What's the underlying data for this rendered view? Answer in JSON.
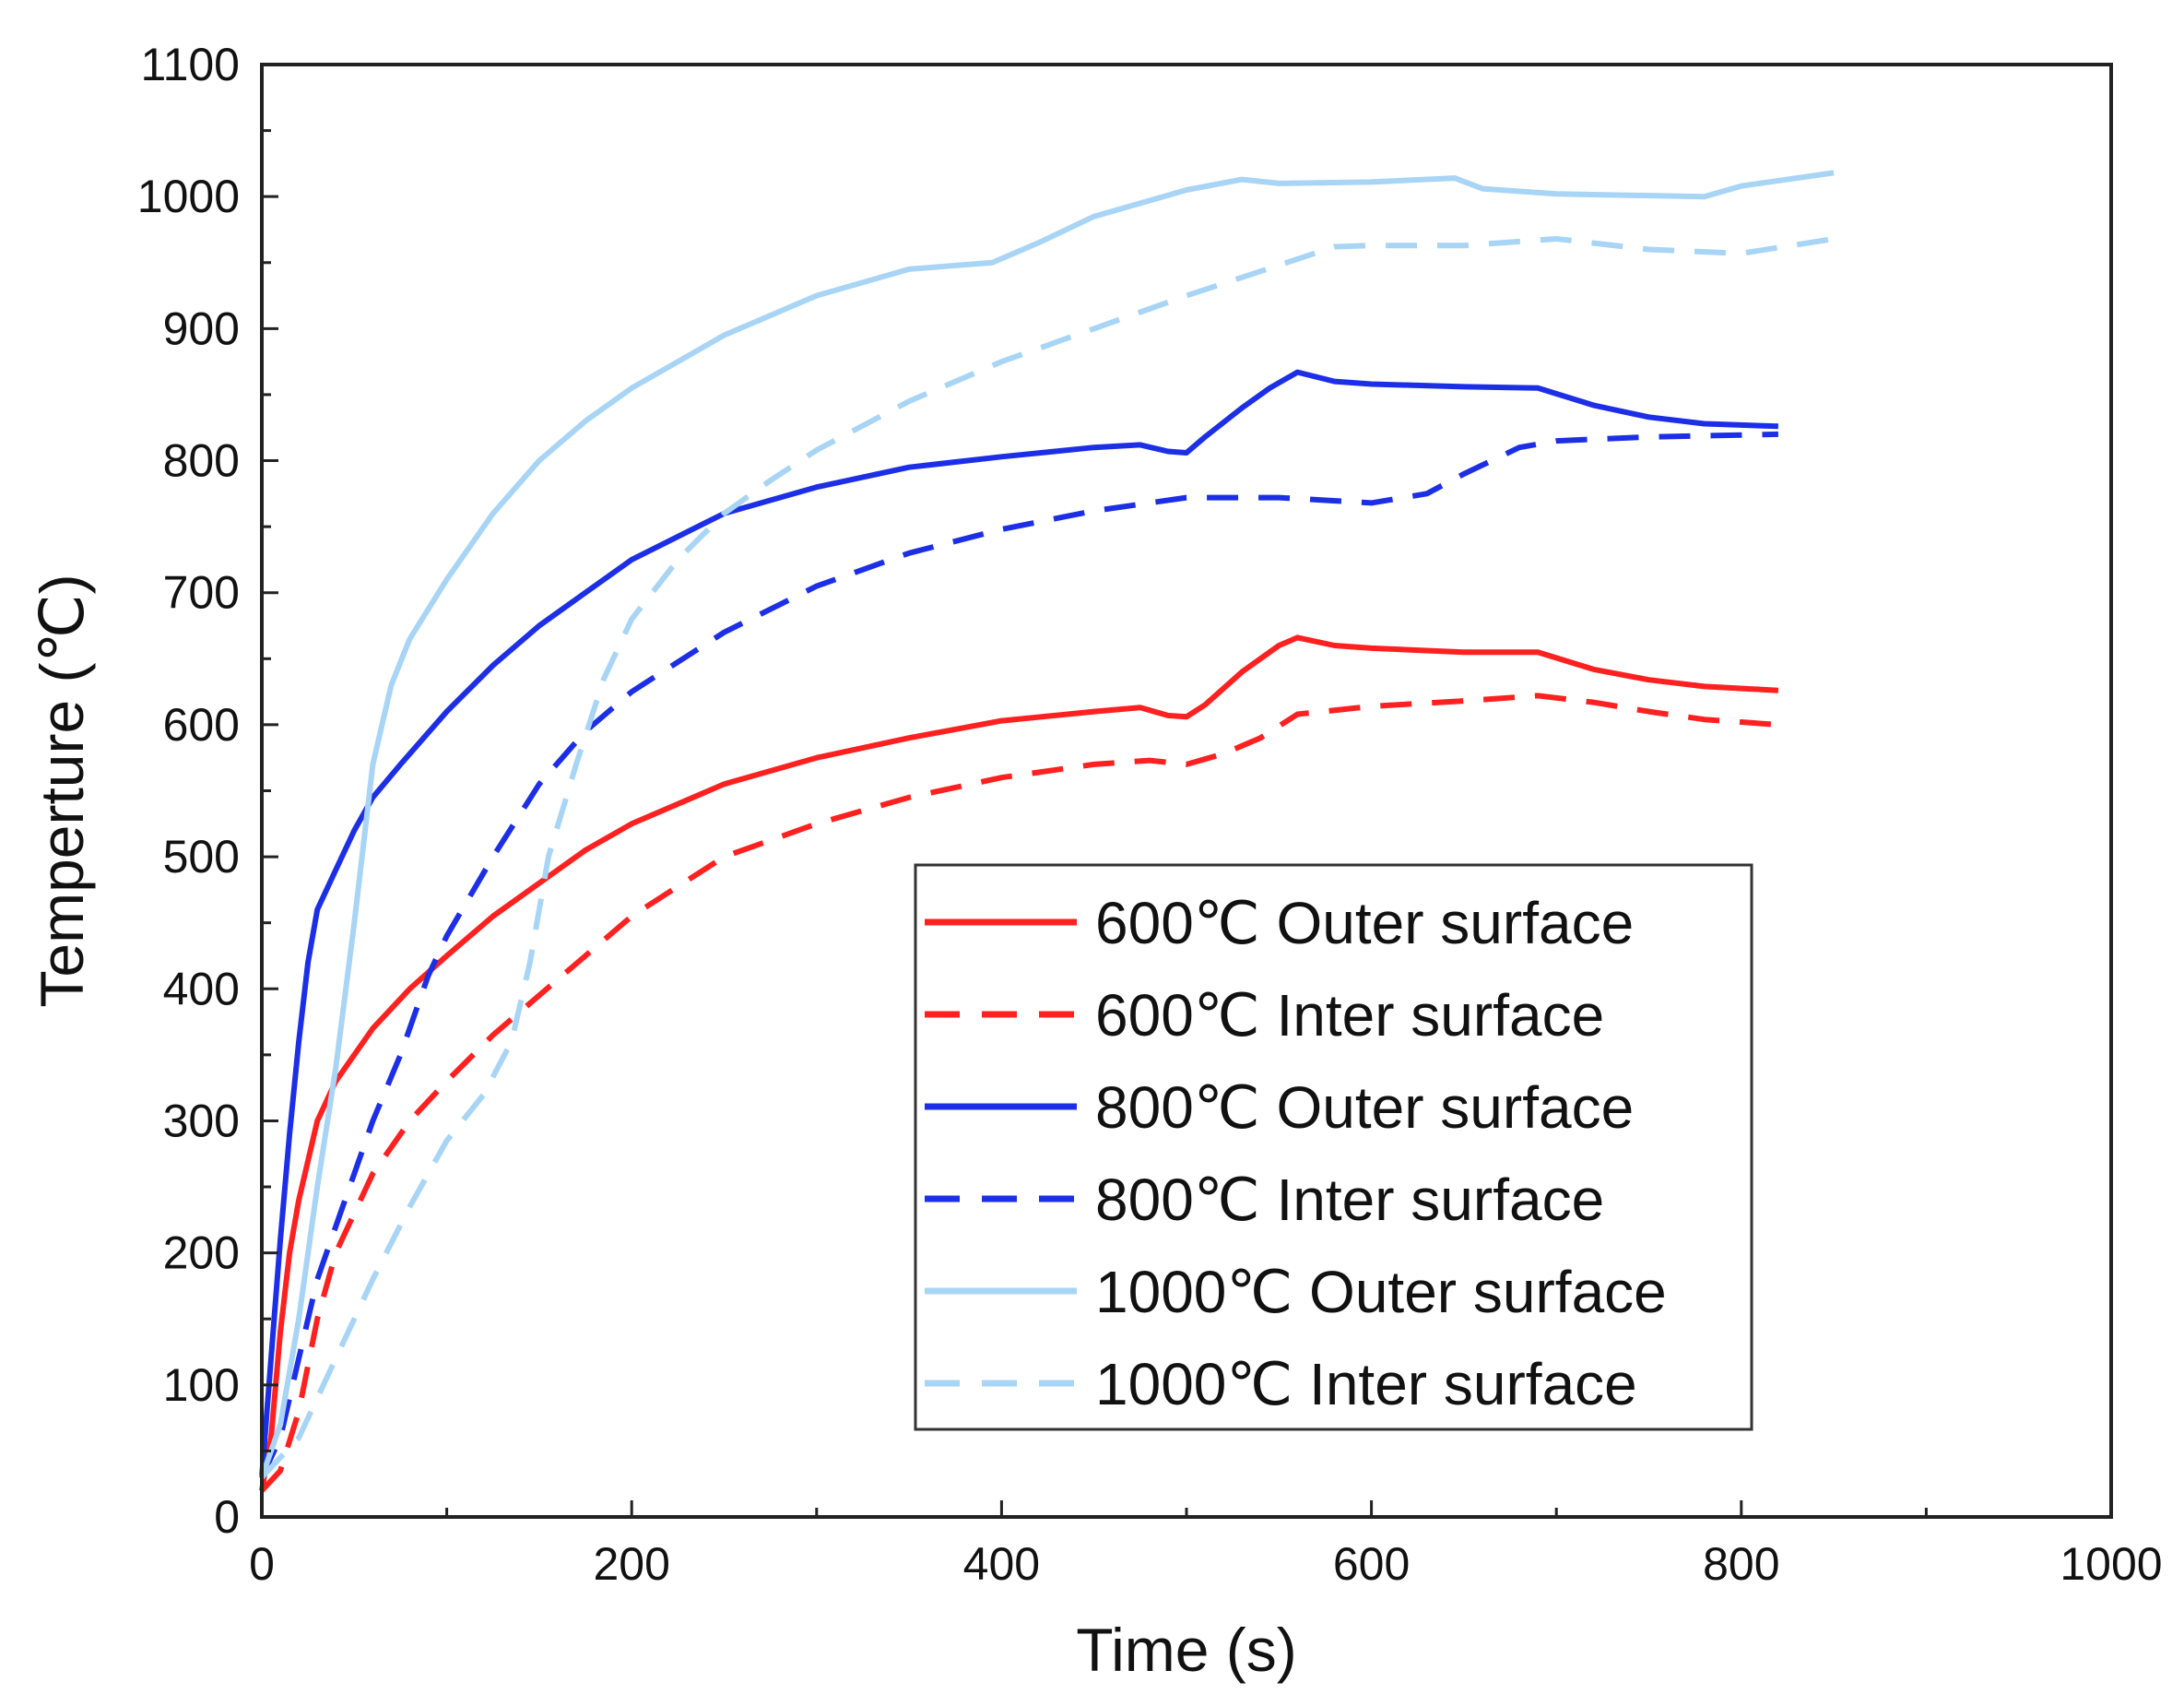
{
  "chart_data": {
    "type": "line",
    "title": "",
    "xlabel": "Time (s)",
    "ylabel": "Temperture (℃)",
    "xlim": [
      0,
      1000
    ],
    "ylim": [
      0,
      1100
    ],
    "xticks": [
      0,
      200,
      400,
      600,
      800,
      1000
    ],
    "yticks": [
      0,
      100,
      200,
      300,
      400,
      500,
      600,
      700,
      800,
      900,
      1000,
      1100
    ],
    "grid": false,
    "legend_position": "lower-right",
    "series": [
      {
        "name": "600℃ Outer surface",
        "color": "#ff2020",
        "style": "solid",
        "points": [
          [
            0,
            20
          ],
          [
            5,
            60
          ],
          [
            10,
            140
          ],
          [
            15,
            200
          ],
          [
            20,
            240
          ],
          [
            30,
            300
          ],
          [
            40,
            330
          ],
          [
            60,
            370
          ],
          [
            80,
            400
          ],
          [
            100,
            425
          ],
          [
            125,
            455
          ],
          [
            150,
            480
          ],
          [
            175,
            505
          ],
          [
            200,
            525
          ],
          [
            250,
            555
          ],
          [
            300,
            575
          ],
          [
            350,
            590
          ],
          [
            400,
            603
          ],
          [
            450,
            610
          ],
          [
            475,
            613
          ],
          [
            490,
            607
          ],
          [
            500,
            606
          ],
          [
            510,
            615
          ],
          [
            530,
            640
          ],
          [
            550,
            660
          ],
          [
            560,
            666
          ],
          [
            580,
            660
          ],
          [
            600,
            658
          ],
          [
            650,
            655
          ],
          [
            690,
            655
          ],
          [
            720,
            642
          ],
          [
            750,
            634
          ],
          [
            780,
            629
          ],
          [
            820,
            626
          ]
        ]
      },
      {
        "name": "600℃ Inter surface",
        "color": "#ff2020",
        "style": "dashed",
        "points": [
          [
            0,
            20
          ],
          [
            10,
            35
          ],
          [
            20,
            80
          ],
          [
            30,
            150
          ],
          [
            40,
            200
          ],
          [
            60,
            260
          ],
          [
            80,
            300
          ],
          [
            100,
            330
          ],
          [
            125,
            365
          ],
          [
            150,
            395
          ],
          [
            175,
            425
          ],
          [
            200,
            455
          ],
          [
            250,
            500
          ],
          [
            300,
            525
          ],
          [
            350,
            545
          ],
          [
            400,
            560
          ],
          [
            450,
            570
          ],
          [
            480,
            573
          ],
          [
            500,
            570
          ],
          [
            520,
            578
          ],
          [
            540,
            590
          ],
          [
            560,
            608
          ],
          [
            600,
            614
          ],
          [
            650,
            618
          ],
          [
            690,
            622
          ],
          [
            720,
            617
          ],
          [
            750,
            610
          ],
          [
            780,
            604
          ],
          [
            820,
            600
          ]
        ]
      },
      {
        "name": "800℃ Outer surface",
        "color": "#1c2fe6",
        "style": "solid",
        "points": [
          [
            0,
            30
          ],
          [
            5,
            120
          ],
          [
            10,
            210
          ],
          [
            15,
            290
          ],
          [
            20,
            360
          ],
          [
            25,
            420
          ],
          [
            30,
            460
          ],
          [
            40,
            490
          ],
          [
            50,
            520
          ],
          [
            60,
            545
          ],
          [
            75,
            570
          ],
          [
            100,
            610
          ],
          [
            125,
            645
          ],
          [
            150,
            675
          ],
          [
            175,
            700
          ],
          [
            200,
            725
          ],
          [
            250,
            760
          ],
          [
            300,
            780
          ],
          [
            350,
            795
          ],
          [
            400,
            803
          ],
          [
            450,
            810
          ],
          [
            475,
            812
          ],
          [
            490,
            807
          ],
          [
            500,
            806
          ],
          [
            510,
            818
          ],
          [
            530,
            840
          ],
          [
            545,
            855
          ],
          [
            560,
            867
          ],
          [
            580,
            860
          ],
          [
            600,
            858
          ],
          [
            650,
            856
          ],
          [
            690,
            855
          ],
          [
            720,
            842
          ],
          [
            750,
            833
          ],
          [
            780,
            828
          ],
          [
            820,
            826
          ]
        ]
      },
      {
        "name": "800℃ Inter surface",
        "color": "#1c2fe6",
        "style": "dashed",
        "points": [
          [
            0,
            30
          ],
          [
            10,
            60
          ],
          [
            20,
            120
          ],
          [
            30,
            180
          ],
          [
            40,
            220
          ],
          [
            50,
            260
          ],
          [
            60,
            300
          ],
          [
            75,
            350
          ],
          [
            90,
            410
          ],
          [
            100,
            440
          ],
          [
            125,
            500
          ],
          [
            150,
            555
          ],
          [
            175,
            595
          ],
          [
            200,
            625
          ],
          [
            250,
            670
          ],
          [
            300,
            705
          ],
          [
            350,
            730
          ],
          [
            400,
            748
          ],
          [
            450,
            762
          ],
          [
            500,
            772
          ],
          [
            550,
            772
          ],
          [
            600,
            768
          ],
          [
            630,
            775
          ],
          [
            650,
            790
          ],
          [
            680,
            810
          ],
          [
            700,
            815
          ],
          [
            750,
            818
          ],
          [
            820,
            820
          ]
        ]
      },
      {
        "name": "1000℃ Outer surface",
        "color": "#a8d4f5",
        "style": "solid",
        "points": [
          [
            0,
            30
          ],
          [
            10,
            70
          ],
          [
            20,
            150
          ],
          [
            30,
            250
          ],
          [
            40,
            340
          ],
          [
            50,
            450
          ],
          [
            60,
            570
          ],
          [
            70,
            630
          ],
          [
            80,
            665
          ],
          [
            100,
            710
          ],
          [
            125,
            760
          ],
          [
            150,
            800
          ],
          [
            175,
            830
          ],
          [
            200,
            855
          ],
          [
            250,
            895
          ],
          [
            300,
            925
          ],
          [
            350,
            945
          ],
          [
            395,
            950
          ],
          [
            420,
            965
          ],
          [
            450,
            985
          ],
          [
            500,
            1005
          ],
          [
            530,
            1013
          ],
          [
            550,
            1010
          ],
          [
            600,
            1011
          ],
          [
            645,
            1014
          ],
          [
            660,
            1006
          ],
          [
            700,
            1002
          ],
          [
            780,
            1000
          ],
          [
            800,
            1008
          ],
          [
            850,
            1018
          ]
        ]
      },
      {
        "name": "1000℃ Inter surface",
        "color": "#a8d4f5",
        "style": "dashed",
        "points": [
          [
            0,
            30
          ],
          [
            20,
            60
          ],
          [
            40,
            120
          ],
          [
            60,
            180
          ],
          [
            80,
            235
          ],
          [
            100,
            285
          ],
          [
            120,
            320
          ],
          [
            135,
            360
          ],
          [
            145,
            420
          ],
          [
            155,
            500
          ],
          [
            170,
            570
          ],
          [
            185,
            635
          ],
          [
            200,
            680
          ],
          [
            225,
            725
          ],
          [
            250,
            760
          ],
          [
            275,
            785
          ],
          [
            300,
            808
          ],
          [
            350,
            845
          ],
          [
            400,
            875
          ],
          [
            450,
            900
          ],
          [
            500,
            925
          ],
          [
            550,
            948
          ],
          [
            580,
            962
          ],
          [
            600,
            963
          ],
          [
            650,
            963
          ],
          [
            700,
            968
          ],
          [
            750,
            960
          ],
          [
            800,
            957
          ],
          [
            850,
            968
          ]
        ]
      }
    ]
  }
}
